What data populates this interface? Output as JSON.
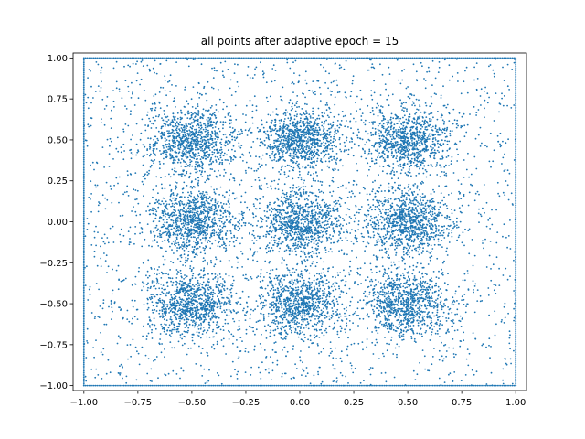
{
  "chart_data": {
    "type": "scatter",
    "title": "all points after adaptive epoch = 15",
    "xlabel": "",
    "ylabel": "",
    "xlim": [
      -1.05,
      1.05
    ],
    "ylim": [
      -1.03,
      1.03
    ],
    "xticks": [
      -1.0,
      -0.75,
      -0.5,
      -0.25,
      0.0,
      0.25,
      0.5,
      0.75,
      1.0
    ],
    "xtick_labels": [
      "−1.00",
      "−0.75",
      "−0.50",
      "−0.25",
      "0.00",
      "0.25",
      "0.50",
      "0.75",
      "1.00"
    ],
    "yticks": [
      -1.0,
      -0.75,
      -0.5,
      -0.25,
      0.0,
      0.25,
      0.5,
      0.75,
      1.0
    ],
    "ytick_labels": [
      "−1.00",
      "−0.75",
      "−0.50",
      "−0.25",
      "0.00",
      "0.25",
      "0.50",
      "0.75",
      "1.00"
    ],
    "grid": false,
    "color": "#1f77b4",
    "clusters": [
      {
        "center": [
          -0.5,
          0.5
        ],
        "spread": 0.1
      },
      {
        "center": [
          0.0,
          0.5
        ],
        "spread": 0.09
      },
      {
        "center": [
          0.5,
          0.5
        ],
        "spread": 0.1
      },
      {
        "center": [
          -0.5,
          0.0
        ],
        "spread": 0.1
      },
      {
        "center": [
          0.0,
          0.0
        ],
        "spread": 0.1
      },
      {
        "center": [
          0.5,
          0.0
        ],
        "spread": 0.1
      },
      {
        "center": [
          -0.5,
          -0.5
        ],
        "spread": 0.1
      },
      {
        "center": [
          0.0,
          -0.5
        ],
        "spread": 0.1
      },
      {
        "center": [
          0.5,
          -0.5
        ],
        "spread": 0.1
      }
    ],
    "boundary": {
      "x": [
        -1.0,
        1.0
      ],
      "y": [
        -1.0,
        1.0
      ]
    }
  }
}
